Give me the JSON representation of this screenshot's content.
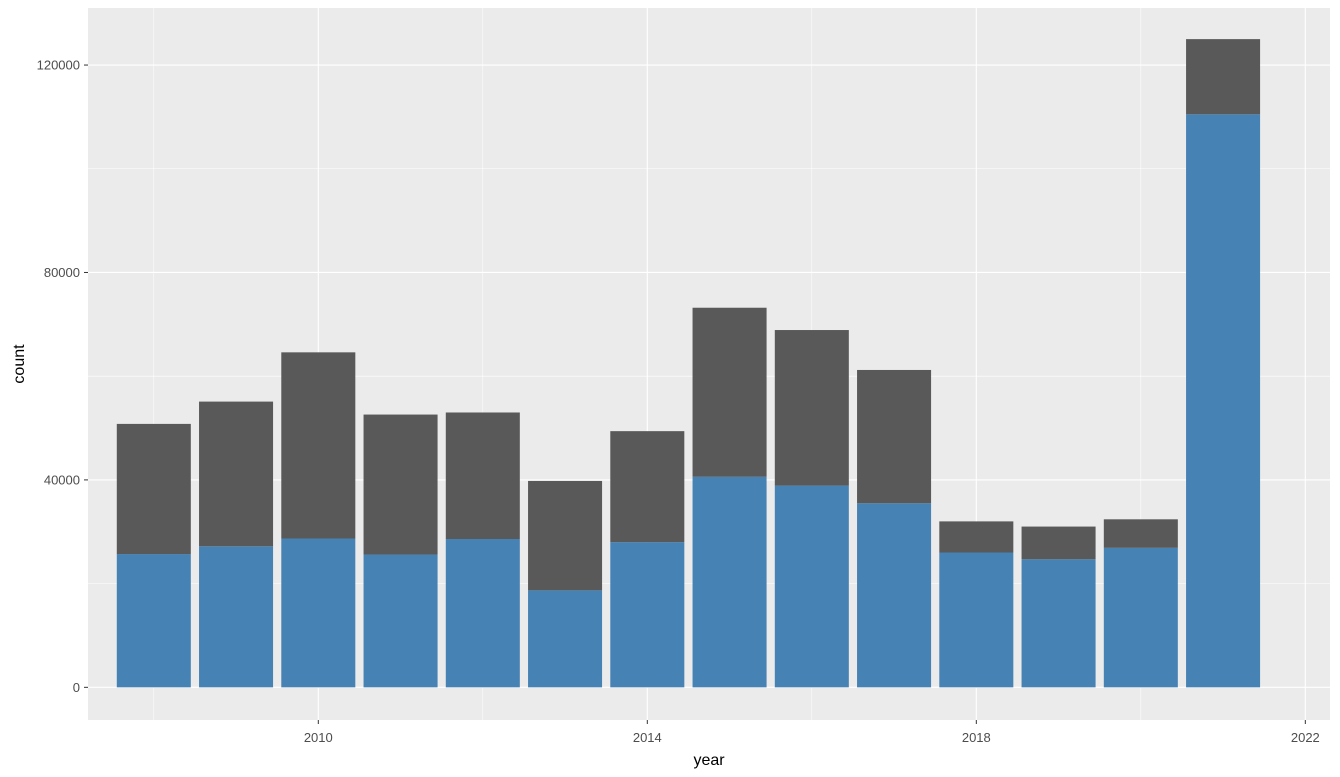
{
  "chart_data": {
    "type": "bar",
    "stacked": true,
    "xlabel": "year",
    "ylabel": "count",
    "x": [
      2008,
      2009,
      2010,
      2011,
      2012,
      2013,
      2014,
      2015,
      2016,
      2017,
      2018,
      2019,
      2020,
      2021
    ],
    "series": [
      {
        "color": "#4682b4",
        "values": [
          25700,
          27200,
          28700,
          25600,
          28600,
          18700,
          28000,
          40600,
          38900,
          35500,
          26000,
          24700,
          26900,
          110500
        ]
      },
      {
        "color": "#595959",
        "values": [
          25100,
          27900,
          35900,
          27000,
          24400,
          21100,
          21400,
          32600,
          30000,
          25700,
          6000,
          6300,
          5500,
          14500
        ]
      }
    ],
    "xlim": [
      2007.2,
      2022.3
    ],
    "ylim": [
      -6300,
      131000
    ],
    "xticks": [
      "2010",
      "2014",
      "2018",
      "2022"
    ],
    "yticks": [
      "0",
      "40000",
      "80000",
      "120000"
    ],
    "grid": true,
    "legend": "none",
    "panel_background": "#ebebeb",
    "gridline_color": "#ffffff"
  }
}
